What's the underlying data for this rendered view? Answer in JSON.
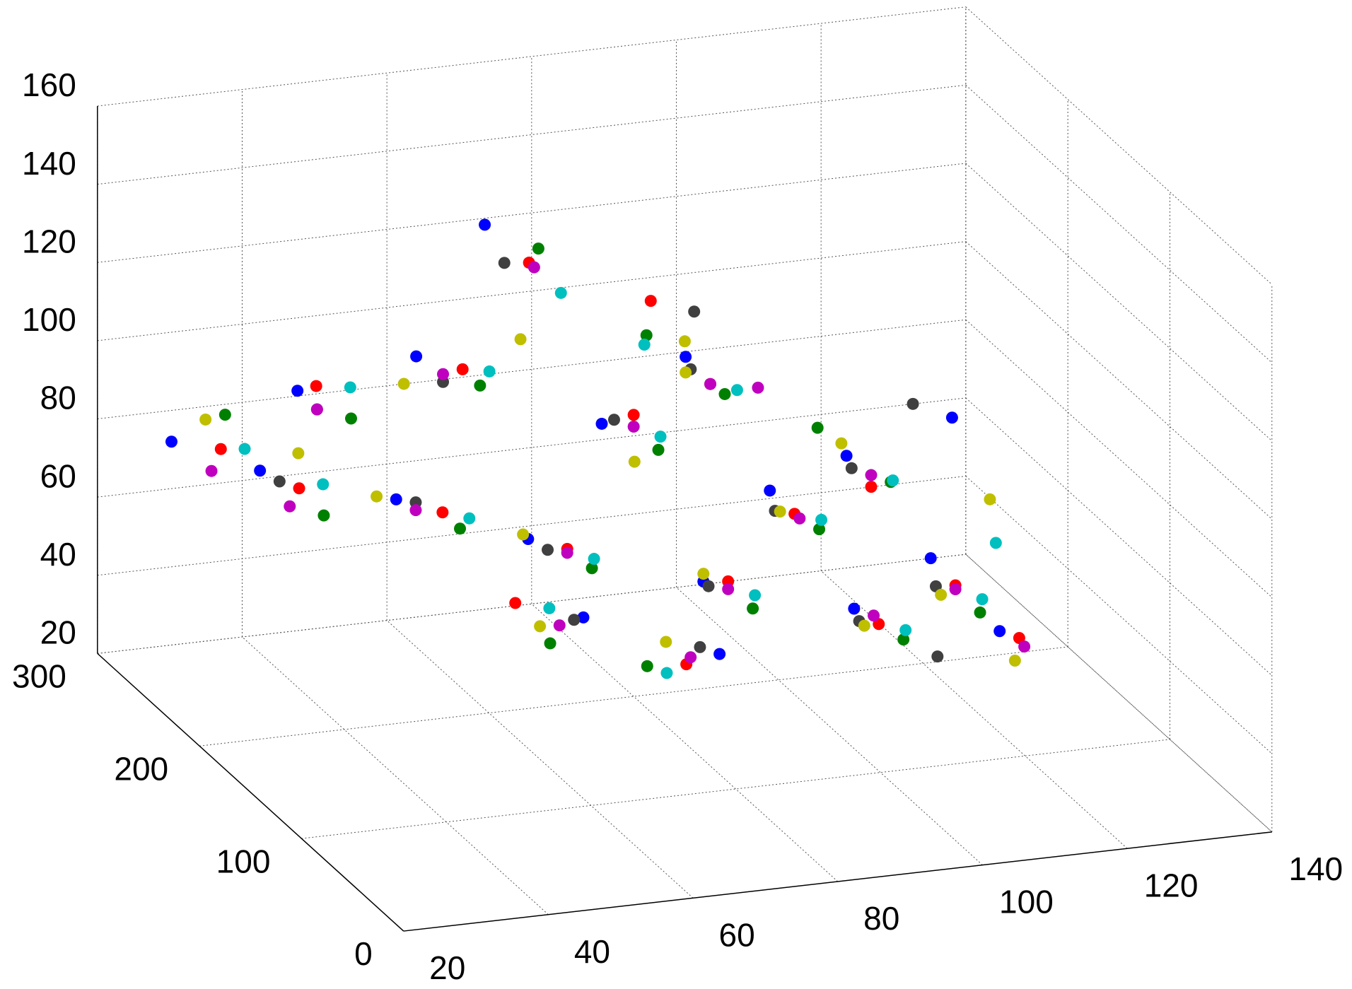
{
  "chart_data": {
    "type": "scatter3d",
    "xlim": [
      20,
      140
    ],
    "ylim": [
      0,
      300
    ],
    "zlim": [
      20,
      160
    ],
    "xticks": [
      20,
      40,
      60,
      80,
      100,
      120,
      140
    ],
    "yticks": [
      0,
      100,
      200,
      300
    ],
    "zticks": [
      20,
      40,
      60,
      80,
      100,
      120,
      140,
      160
    ],
    "grid": true,
    "series": [
      {
        "color": "#ff0000",
        "x": [
          30,
          38,
          46,
          55,
          62,
          68,
          74,
          80,
          86,
          92,
          98,
          104,
          110,
          116,
          122,
          58,
          76,
          88
        ],
        "y": [
          250,
          230,
          270,
          210,
          240,
          180,
          260,
          200,
          150,
          210,
          170,
          130,
          180,
          140,
          120,
          160,
          120,
          240
        ],
        "z": [
          82,
          75,
          90,
          70,
          98,
          65,
          118,
          92,
          60,
          95,
          70,
          50,
          72,
          55,
          45,
          58,
          48,
          110
        ]
      },
      {
        "color": "#0000ff",
        "x": [
          26,
          34,
          42,
          50,
          57,
          64,
          70,
          77,
          84,
          90,
          96,
          102,
          108,
          114,
          120,
          66,
          82,
          124
        ],
        "y": [
          270,
          240,
          260,
          220,
          250,
          190,
          275,
          210,
          160,
          220,
          180,
          140,
          190,
          150,
          125,
          150,
          130,
          200
        ],
        "z": [
          80,
          78,
          92,
          72,
          100,
          66,
          125,
          88,
          58,
          100,
          74,
          52,
          78,
          60,
          46,
          55,
          47,
          82
        ]
      },
      {
        "color": "#008000",
        "x": [
          32,
          40,
          48,
          56,
          63,
          70,
          76,
          82,
          88,
          94,
          100,
          106,
          112,
          118,
          60,
          72,
          86,
          104
        ],
        "y": [
          260,
          220,
          250,
          200,
          230,
          170,
          265,
          190,
          140,
          210,
          160,
          120,
          175,
          130,
          140,
          130,
          230,
          190
        ],
        "z": [
          88,
          70,
          86,
          68,
          96,
          62,
          120,
          85,
          55,
          92,
          68,
          48,
          74,
          50,
          52,
          46,
          104,
          86
        ]
      },
      {
        "color": "#404040",
        "x": [
          36,
          44,
          52,
          60,
          66,
          72,
          78,
          84,
          90,
          96,
          102,
          108,
          114,
          120,
          64,
          80,
          94,
          110
        ],
        "y": [
          235,
          255,
          215,
          245,
          185,
          270,
          205,
          155,
          215,
          175,
          135,
          185,
          145,
          210,
          145,
          135,
          240,
          115
        ],
        "z": [
          76,
          88,
          72,
          94,
          64,
          116,
          90,
          58,
          98,
          70,
          50,
          76,
          54,
          84,
          56,
          48,
          106,
          44
        ]
      },
      {
        "color": "#00bfbf",
        "x": [
          34,
          42,
          50,
          58,
          65,
          71,
          77,
          83,
          89,
          95,
          101,
          107,
          113,
          119,
          62,
          74,
          85,
          123
        ],
        "y": [
          255,
          235,
          265,
          205,
          235,
          175,
          250,
          195,
          145,
          205,
          165,
          125,
          180,
          135,
          155,
          125,
          225,
          150
        ],
        "z": [
          80,
          74,
          90,
          69,
          98,
          63,
          112,
          87,
          57,
          94,
          69,
          49,
          73,
          52,
          57,
          45,
          103,
          62
        ]
      },
      {
        "color": "#bfbf00",
        "x": [
          30,
          40,
          48,
          56,
          64,
          70,
          78,
          84,
          90,
          96,
          102,
          108,
          114,
          120,
          60,
          76,
          92,
          125
        ],
        "y": [
          265,
          245,
          225,
          255,
          195,
          240,
          185,
          160,
          220,
          170,
          130,
          195,
          140,
          110,
          150,
          140,
          235,
          170
        ],
        "z": [
          86,
          80,
          72,
          92,
          66,
          104,
          84,
          60,
          96,
          71,
          50,
          80,
          53,
          42,
          54,
          49,
          100,
          68
        ]
      },
      {
        "color": "#bf00bf",
        "x": [
          28,
          36,
          44,
          52,
          60,
          68,
          74,
          80,
          86,
          92,
          98,
          104,
          110,
          116,
          122,
          62,
          78,
          100
        ],
        "y": [
          245,
          225,
          255,
          215,
          245,
          180,
          255,
          200,
          150,
          210,
          165,
          135,
          180,
          140,
          115,
          145,
          130,
          220
        ],
        "z": [
          78,
          72,
          88,
          70,
          96,
          64,
          118,
          89,
          58,
          95,
          70,
          51,
          75,
          54,
          44,
          55,
          47,
          90
        ]
      }
    ]
  }
}
